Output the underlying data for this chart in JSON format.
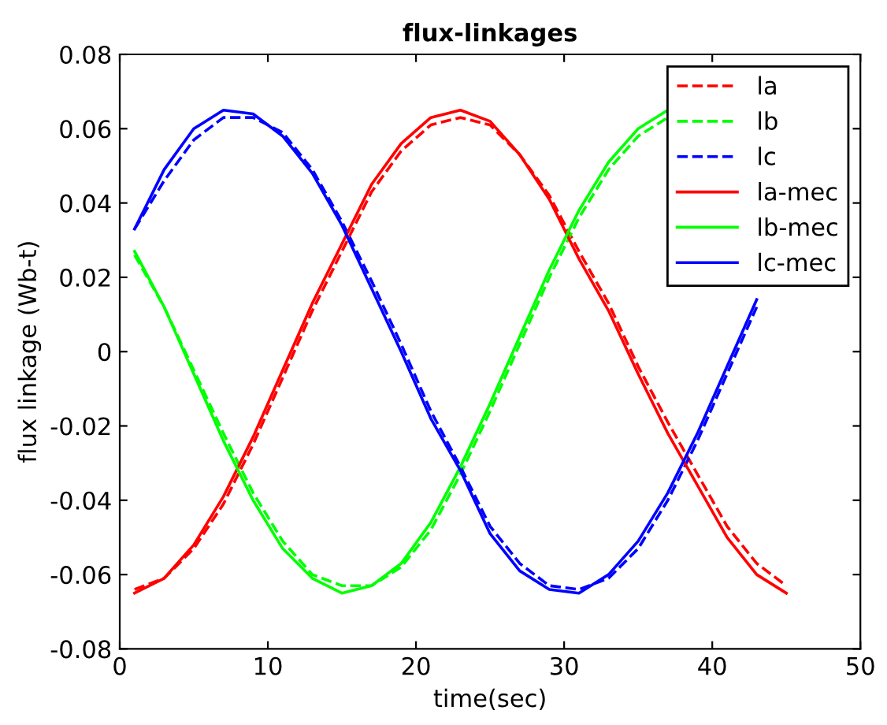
{
  "chart_data": {
    "type": "line",
    "title": "flux-linkages",
    "xlabel": "time(sec)",
    "ylabel": "flux linkage (Wb-t)",
    "x": [
      1,
      3,
      5,
      7,
      9,
      11,
      13,
      15,
      17,
      19,
      21,
      23,
      25,
      27,
      29,
      31,
      33,
      35,
      37,
      39,
      41,
      43,
      45
    ],
    "series": [
      {
        "name": "la",
        "color": "#ff0000",
        "line_style": "dashed",
        "values": [
          -0.064,
          -0.061,
          -0.053,
          -0.041,
          -0.025,
          -0.007,
          0.011,
          0.027,
          0.043,
          0.054,
          0.061,
          0.063,
          0.061,
          0.053,
          0.042,
          0.027,
          0.013,
          -0.004,
          -0.019,
          -0.033,
          -0.047,
          -0.057,
          -0.063
        ]
      },
      {
        "name": "lb",
        "color": "#00ff00",
        "line_style": "dashed",
        "values": [
          0.026,
          0.012,
          -0.005,
          -0.022,
          -0.038,
          -0.051,
          -0.06,
          -0.063,
          -0.063,
          -0.058,
          -0.048,
          -0.033,
          -0.016,
          0.002,
          0.02,
          0.036,
          0.049,
          0.058,
          0.063,
          null,
          null,
          null,
          null
        ]
      },
      {
        "name": "lc",
        "color": "#0000ff",
        "line_style": "dashed",
        "values": [
          0.033,
          0.046,
          0.057,
          0.063,
          0.063,
          0.059,
          0.049,
          0.035,
          0.019,
          0.002,
          -0.016,
          -0.031,
          -0.047,
          -0.057,
          -0.063,
          -0.064,
          -0.061,
          -0.053,
          -0.04,
          -0.024,
          -0.006,
          0.012,
          null
        ]
      },
      {
        "name": "la-mec",
        "color": "#ff0000",
        "line_style": "solid",
        "values": [
          -0.065,
          -0.061,
          -0.052,
          -0.039,
          -0.023,
          -0.005,
          0.013,
          0.029,
          0.045,
          0.056,
          0.063,
          0.065,
          0.062,
          0.053,
          0.041,
          0.025,
          0.011,
          -0.006,
          -0.022,
          -0.036,
          -0.05,
          -0.06,
          -0.065
        ]
      },
      {
        "name": "lb-mec",
        "color": "#00ff00",
        "line_style": "solid",
        "values": [
          0.027,
          0.012,
          -0.006,
          -0.024,
          -0.04,
          -0.053,
          -0.061,
          -0.065,
          -0.063,
          -0.057,
          -0.046,
          -0.031,
          -0.014,
          0.004,
          0.022,
          0.038,
          0.051,
          0.06,
          0.065,
          null,
          null,
          null,
          null
        ]
      },
      {
        "name": "lc-mec",
        "color": "#0000ff",
        "line_style": "solid",
        "values": [
          0.033,
          0.049,
          0.06,
          0.065,
          0.064,
          0.058,
          0.048,
          0.034,
          0.017,
          0.0,
          -0.018,
          -0.032,
          -0.049,
          -0.059,
          -0.064,
          -0.065,
          -0.06,
          -0.051,
          -0.038,
          -0.022,
          -0.004,
          0.014,
          null
        ]
      }
    ],
    "xlim": [
      0,
      50
    ],
    "xticks": [
      0,
      10,
      20,
      30,
      40,
      50
    ],
    "ylim": [
      -0.08,
      0.08
    ],
    "yticks": [
      -0.08,
      -0.06,
      -0.04,
      -0.02,
      0,
      0.02,
      0.04,
      0.06,
      0.08
    ],
    "grid": false,
    "legend": "top right",
    "marker": "none"
  }
}
